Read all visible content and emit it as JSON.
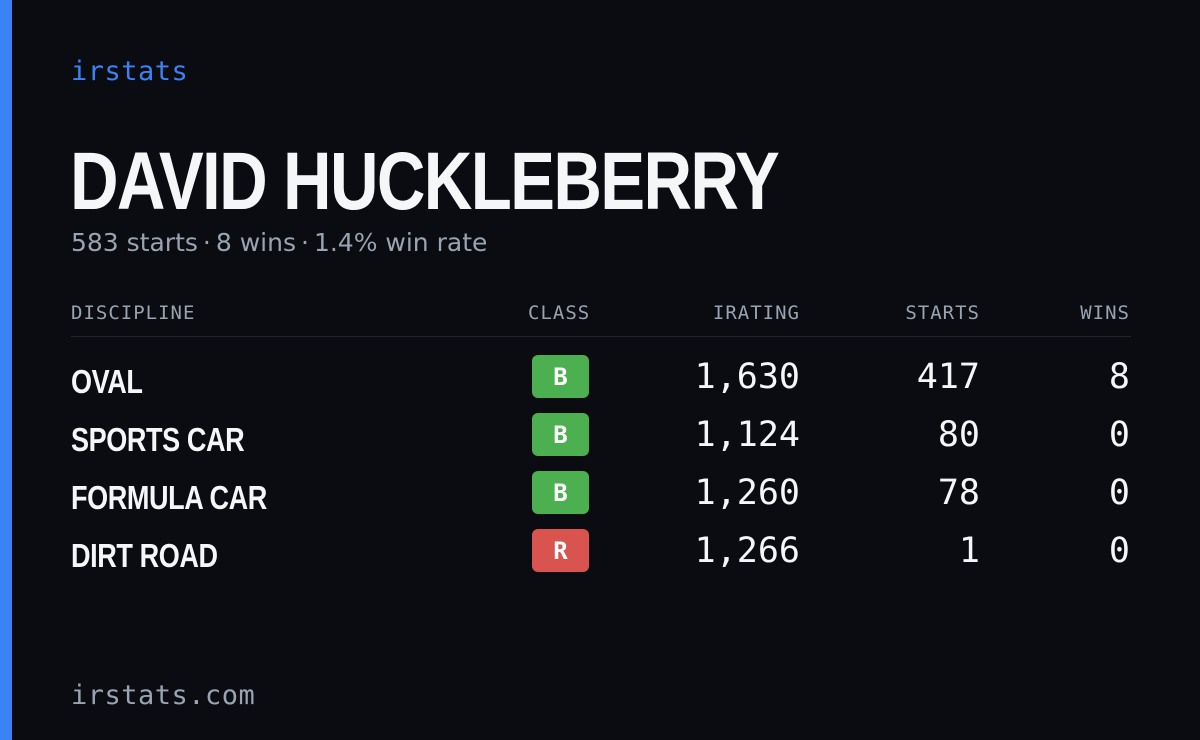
{
  "brand": "irstats",
  "driver": {
    "name": "DAVID HUCKLEBERRY"
  },
  "summary": {
    "starts": "583 starts",
    "wins": "8 wins",
    "win_rate": "1.4% win rate",
    "separator": "·"
  },
  "table": {
    "headers": {
      "discipline": "DISCIPLINE",
      "class": "CLASS",
      "irating": "IRATING",
      "starts": "STARTS",
      "wins": "WINS"
    },
    "rows": [
      {
        "discipline": "OVAL",
        "class": "B",
        "class_color": "#4caf50",
        "irating": "1,630",
        "starts": "417",
        "wins": "8"
      },
      {
        "discipline": "SPORTS CAR",
        "class": "B",
        "class_color": "#4caf50",
        "irating": "1,124",
        "starts": "80",
        "wins": "0"
      },
      {
        "discipline": "FORMULA CAR",
        "class": "B",
        "class_color": "#4caf50",
        "irating": "1,260",
        "starts": "78",
        "wins": "0"
      },
      {
        "discipline": "DIRT ROAD",
        "class": "R",
        "class_color": "#d9534f",
        "irating": "1,266",
        "starts": "1",
        "wins": "0"
      }
    ]
  },
  "footer": {
    "url": "irstats.com"
  },
  "colors": {
    "accent": "#3b82f6",
    "background": "#0a0c12",
    "muted": "#9aa3b2"
  }
}
